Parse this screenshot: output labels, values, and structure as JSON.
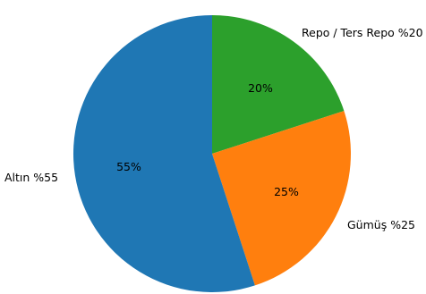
{
  "chart_data": {
    "type": "pie",
    "title": "",
    "slices": [
      {
        "label": "Repo / Ters Repo %20",
        "value": 20,
        "pct_text": "20%",
        "color": "#2ca02c"
      },
      {
        "label": "Gümüş %25",
        "value": 25,
        "pct_text": "25%",
        "color": "#ff7f0e"
      },
      {
        "label": "Altın %55",
        "value": 55,
        "pct_text": "55%",
        "color": "#1f77b4"
      }
    ],
    "start_angle": "12 o'clock",
    "direction": "clockwise",
    "legend": "none"
  }
}
